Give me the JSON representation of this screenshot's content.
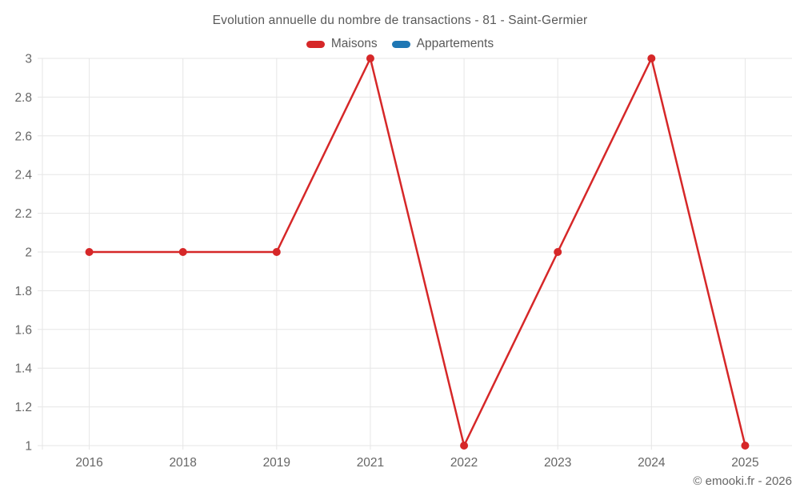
{
  "header": {
    "title": "Evolution annuelle du nombre de transactions - 81 - Saint-Germier"
  },
  "legend": {
    "items": [
      {
        "label": "Maisons",
        "color": "#d62728"
      },
      {
        "label": "Appartements",
        "color": "#1f77b4"
      }
    ]
  },
  "footer": {
    "text": "© emooki.fr - 2026"
  },
  "chart_data": {
    "type": "line",
    "title": "Evolution annuelle du nombre de transactions - 81 - Saint-Germier",
    "categories": [
      "2016",
      "2018",
      "2019",
      "2021",
      "2022",
      "2023",
      "2024",
      "2025"
    ],
    "series": [
      {
        "name": "Maisons",
        "color": "#d62728",
        "values": [
          2,
          2,
          2,
          3,
          1,
          2,
          3,
          1
        ]
      },
      {
        "name": "Appartements",
        "color": "#1f77b4",
        "values": []
      }
    ],
    "xlabel": "",
    "ylabel": "",
    "ylim": [
      1,
      3
    ],
    "ytick_step": 0.2,
    "ytick_labels": [
      "1",
      "1.2",
      "1.4",
      "1.6",
      "1.8",
      "2",
      "2.2",
      "2.4",
      "2.6",
      "2.8",
      "3"
    ],
    "grid": true,
    "legend_position": "top",
    "grid_color": "#e6e6e6",
    "tick_color": "#666666",
    "marker_radius": 5,
    "line_width": 2.5
  }
}
